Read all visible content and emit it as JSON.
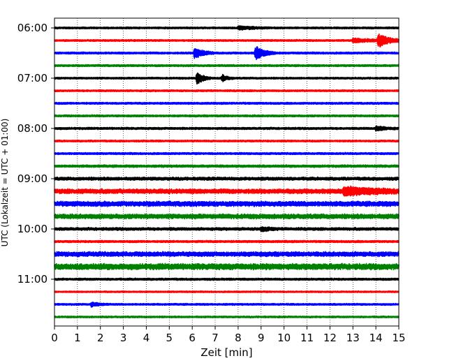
{
  "chart_data": {
    "type": "line",
    "subtype": "helicorder",
    "xlabel": "Zeit  [min]",
    "ylabel": "UTC (Lokalzeit = UTC + 01:00)",
    "xlim": [
      0,
      15
    ],
    "xticks": [
      0,
      1,
      2,
      3,
      4,
      5,
      6,
      7,
      8,
      9,
      10,
      11,
      12,
      13,
      14,
      15
    ],
    "grid": "vertical-dotted",
    "row_interval_minutes": 15,
    "row_colors": [
      "#000000",
      "#ff0000",
      "#0000ff",
      "#008000"
    ],
    "ytick_labels": [
      {
        "row": 0,
        "label": "06:00"
      },
      {
        "row": 4,
        "label": "07:00"
      },
      {
        "row": 8,
        "label": "08:00"
      },
      {
        "row": 12,
        "label": "09:00"
      },
      {
        "row": 16,
        "label": "10:00"
      },
      {
        "row": 20,
        "label": "11:00"
      }
    ],
    "series": [
      {
        "start": "06:00",
        "base_amplitude": 1.2,
        "events": [
          {
            "t": 8.0,
            "amp": 2.5,
            "dur": 0.6
          }
        ]
      },
      {
        "start": "06:15",
        "base_amplitude": 1.2,
        "events": [
          {
            "t": 13.0,
            "amp": 2.5,
            "dur": 1.0
          },
          {
            "t": 14.1,
            "amp": 9,
            "dur": 0.4
          }
        ]
      },
      {
        "start": "06:30",
        "base_amplitude": 1.3,
        "events": [
          {
            "t": 6.1,
            "amp": 8,
            "dur": 0.35
          },
          {
            "t": 8.75,
            "amp": 10,
            "dur": 0.35
          }
        ]
      },
      {
        "start": "06:45",
        "base_amplitude": 1.3,
        "events": []
      },
      {
        "start": "07:00",
        "base_amplitude": 1.2,
        "events": [
          {
            "t": 6.2,
            "amp": 9,
            "dur": 0.25
          },
          {
            "t": 7.3,
            "amp": 5,
            "dur": 0.2
          }
        ]
      },
      {
        "start": "07:15",
        "base_amplitude": 1.2,
        "events": []
      },
      {
        "start": "07:30",
        "base_amplitude": 1.3,
        "events": []
      },
      {
        "start": "07:45",
        "base_amplitude": 1.3,
        "events": []
      },
      {
        "start": "08:00",
        "base_amplitude": 1.4,
        "events": [
          {
            "t": 14.0,
            "amp": 3,
            "dur": 0.4
          }
        ]
      },
      {
        "start": "08:15",
        "base_amplitude": 1.2,
        "events": []
      },
      {
        "start": "08:30",
        "base_amplitude": 1.3,
        "events": []
      },
      {
        "start": "08:45",
        "base_amplitude": 1.6,
        "events": []
      },
      {
        "start": "09:00",
        "base_amplitude": 2.0,
        "events": []
      },
      {
        "start": "09:15",
        "base_amplitude": 3.0,
        "events": [
          {
            "t": 12.6,
            "amp": 5,
            "dur": 1.2
          }
        ]
      },
      {
        "start": "09:30",
        "base_amplitude": 3.2,
        "events": []
      },
      {
        "start": "09:45",
        "base_amplitude": 3.0,
        "events": []
      },
      {
        "start": "10:00",
        "base_amplitude": 1.8,
        "events": [
          {
            "t": 9.0,
            "amp": 3,
            "dur": 0.3
          }
        ]
      },
      {
        "start": "10:15",
        "base_amplitude": 1.4,
        "events": []
      },
      {
        "start": "10:30",
        "base_amplitude": 3.0,
        "events": []
      },
      {
        "start": "10:45",
        "base_amplitude": 3.8,
        "events": []
      },
      {
        "start": "11:00",
        "base_amplitude": 1.4,
        "events": []
      },
      {
        "start": "11:15",
        "base_amplitude": 1.0,
        "events": []
      },
      {
        "start": "11:30",
        "base_amplitude": 1.2,
        "events": [
          {
            "t": 1.6,
            "amp": 3,
            "dur": 0.3
          }
        ]
      },
      {
        "start": "11:45",
        "base_amplitude": 1.1,
        "events": []
      }
    ]
  }
}
